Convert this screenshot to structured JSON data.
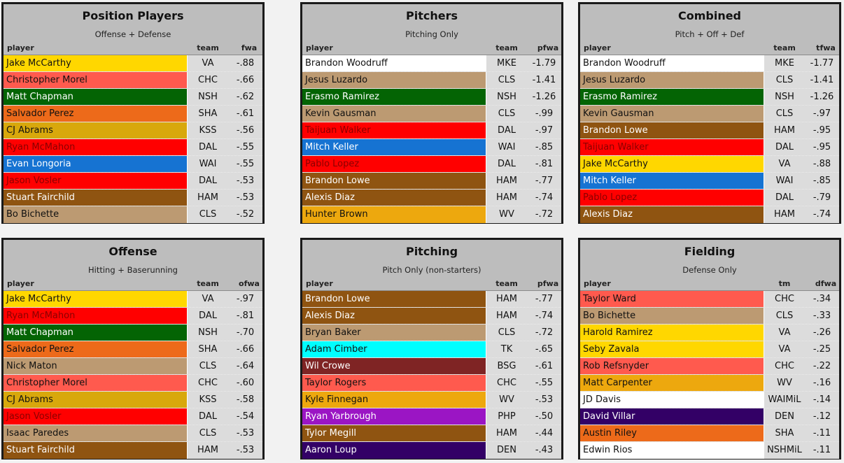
{
  "panels": [
    {
      "title": "Position Players",
      "subtitle": "Offense + Defense",
      "columns": [
        "player",
        "team",
        "fwa"
      ],
      "rows": [
        {
          "player": "Jake McCarthy",
          "team": "VA",
          "value": "-.88",
          "bg": "#ffd700",
          "fg": "#111111"
        },
        {
          "player": "Christopher Morel",
          "team": "CHC",
          "value": "-.66",
          "bg": "#ff5a4e",
          "fg": "#111111"
        },
        {
          "player": "Matt Chapman",
          "team": "NSH",
          "value": "-.62",
          "bg": "#046404",
          "fg": "#ffffff"
        },
        {
          "player": "Salvador Perez",
          "team": "SHA",
          "value": "-.61",
          "bg": "#ed6a1a",
          "fg": "#111111"
        },
        {
          "player": "CJ Abrams",
          "team": "KSS",
          "value": "-.56",
          "bg": "#d8a80c",
          "fg": "#111111"
        },
        {
          "player": "Ryan McMahon",
          "team": "DAL",
          "value": "-.55",
          "bg": "#ff0000",
          "fg": "#8a0000"
        },
        {
          "player": "Evan Longoria",
          "team": "WAI",
          "value": "-.55",
          "bg": "#1673d2",
          "fg": "#ffffff"
        },
        {
          "player": "Jason Vosler",
          "team": "DAL",
          "value": "-.53",
          "bg": "#ff0000",
          "fg": "#8a0000"
        },
        {
          "player": "Stuart Fairchild",
          "team": "HAM",
          "value": "-.53",
          "bg": "#8f5411",
          "fg": "#ffffff"
        },
        {
          "player": "Bo Bichette",
          "team": "CLS",
          "value": "-.52",
          "bg": "#bc9a72",
          "fg": "#111111"
        }
      ]
    },
    {
      "title": "Pitchers",
      "subtitle": "Pitching Only",
      "columns": [
        "player",
        "team",
        "pfwa"
      ],
      "rows": [
        {
          "player": "Brandon Woodruff",
          "team": "MKE",
          "value": "-1.79",
          "bg": "#ffffff",
          "fg": "#111111"
        },
        {
          "player": "Jesus Luzardo",
          "team": "CLS",
          "value": "-1.41",
          "bg": "#bc9a72",
          "fg": "#111111"
        },
        {
          "player": "Erasmo Ramirez",
          "team": "NSH",
          "value": "-1.26",
          "bg": "#046404",
          "fg": "#ffffff"
        },
        {
          "player": "Kevin Gausman",
          "team": "CLS",
          "value": "-.99",
          "bg": "#bc9a72",
          "fg": "#111111"
        },
        {
          "player": "Taijuan Walker",
          "team": "DAL",
          "value": "-.97",
          "bg": "#ff0000",
          "fg": "#8a0000"
        },
        {
          "player": "Mitch Keller",
          "team": "WAI",
          "value": "-.85",
          "bg": "#1673d2",
          "fg": "#ffffff"
        },
        {
          "player": "Pablo Lopez",
          "team": "DAL",
          "value": "-.81",
          "bg": "#ff0000",
          "fg": "#8a0000"
        },
        {
          "player": "Brandon Lowe",
          "team": "HAM",
          "value": "-.77",
          "bg": "#8f5411",
          "fg": "#ffffff"
        },
        {
          "player": "Alexis Diaz",
          "team": "HAM",
          "value": "-.74",
          "bg": "#8f5411",
          "fg": "#ffffff"
        },
        {
          "player": "Hunter Brown",
          "team": "WV",
          "value": "-.72",
          "bg": "#eda80e",
          "fg": "#111111"
        }
      ]
    },
    {
      "title": "Combined",
      "subtitle": "Pitch + Off + Def",
      "columns": [
        "player",
        "team",
        "tfwa"
      ],
      "rows": [
        {
          "player": "Brandon Woodruff",
          "team": "MKE",
          "value": "-1.77",
          "bg": "#ffffff",
          "fg": "#111111"
        },
        {
          "player": "Jesus Luzardo",
          "team": "CLS",
          "value": "-1.41",
          "bg": "#bc9a72",
          "fg": "#111111"
        },
        {
          "player": "Erasmo Ramirez",
          "team": "NSH",
          "value": "-1.26",
          "bg": "#046404",
          "fg": "#ffffff"
        },
        {
          "player": "Kevin Gausman",
          "team": "CLS",
          "value": "-.97",
          "bg": "#bc9a72",
          "fg": "#111111"
        },
        {
          "player": "Brandon Lowe",
          "team": "HAM",
          "value": "-.95",
          "bg": "#8f5411",
          "fg": "#ffffff"
        },
        {
          "player": "Taijuan Walker",
          "team": "DAL",
          "value": "-.95",
          "bg": "#ff0000",
          "fg": "#8a0000"
        },
        {
          "player": "Jake McCarthy",
          "team": "VA",
          "value": "-.88",
          "bg": "#ffd700",
          "fg": "#111111"
        },
        {
          "player": "Mitch Keller",
          "team": "WAI",
          "value": "-.85",
          "bg": "#1673d2",
          "fg": "#ffffff"
        },
        {
          "player": "Pablo Lopez",
          "team": "DAL",
          "value": "-.79",
          "bg": "#ff0000",
          "fg": "#8a0000"
        },
        {
          "player": "Alexis Diaz",
          "team": "HAM",
          "value": "-.74",
          "bg": "#8f5411",
          "fg": "#ffffff"
        }
      ]
    },
    {
      "title": "Offense",
      "subtitle": "Hitting + Baserunning",
      "columns": [
        "player",
        "team",
        "ofwa"
      ],
      "rows": [
        {
          "player": "Jake McCarthy",
          "team": "VA",
          "value": "-.97",
          "bg": "#ffd700",
          "fg": "#111111"
        },
        {
          "player": "Ryan McMahon",
          "team": "DAL",
          "value": "-.81",
          "bg": "#ff0000",
          "fg": "#8a0000"
        },
        {
          "player": "Matt Chapman",
          "team": "NSH",
          "value": "-.70",
          "bg": "#046404",
          "fg": "#ffffff"
        },
        {
          "player": "Salvador Perez",
          "team": "SHA",
          "value": "-.66",
          "bg": "#ed6a1a",
          "fg": "#111111"
        },
        {
          "player": "Nick Maton",
          "team": "CLS",
          "value": "-.64",
          "bg": "#bc9a72",
          "fg": "#111111"
        },
        {
          "player": "Christopher Morel",
          "team": "CHC",
          "value": "-.60",
          "bg": "#ff5a4e",
          "fg": "#111111"
        },
        {
          "player": "CJ Abrams",
          "team": "KSS",
          "value": "-.58",
          "bg": "#d8a80c",
          "fg": "#111111"
        },
        {
          "player": "Jason Vosler",
          "team": "DAL",
          "value": "-.54",
          "bg": "#ff0000",
          "fg": "#8a0000"
        },
        {
          "player": "Isaac Paredes",
          "team": "CLS",
          "value": "-.53",
          "bg": "#bc9a72",
          "fg": "#111111"
        },
        {
          "player": "Stuart Fairchild",
          "team": "HAM",
          "value": "-.53",
          "bg": "#8f5411",
          "fg": "#ffffff"
        }
      ]
    },
    {
      "title": "Pitching",
      "subtitle": "Pitch Only (non-starters)",
      "columns": [
        "player",
        "team",
        "pfwa"
      ],
      "rows": [
        {
          "player": "Brandon Lowe",
          "team": "HAM",
          "value": "-.77",
          "bg": "#8f5411",
          "fg": "#ffffff"
        },
        {
          "player": "Alexis Diaz",
          "team": "HAM",
          "value": "-.74",
          "bg": "#8f5411",
          "fg": "#ffffff"
        },
        {
          "player": "Bryan Baker",
          "team": "CLS",
          "value": "-.72",
          "bg": "#bc9a72",
          "fg": "#111111"
        },
        {
          "player": "Adam Cimber",
          "team": "TK",
          "value": "-.65",
          "bg": "#00ffff",
          "fg": "#111111"
        },
        {
          "player": "Wil Crowe",
          "team": "BSG",
          "value": "-.61",
          "bg": "#7f2424",
          "fg": "#ffffff"
        },
        {
          "player": "Taylor Rogers",
          "team": "CHC",
          "value": "-.55",
          "bg": "#ff5a4e",
          "fg": "#111111"
        },
        {
          "player": "Kyle Finnegan",
          "team": "WV",
          "value": "-.53",
          "bg": "#eda80e",
          "fg": "#111111"
        },
        {
          "player": "Ryan Yarbrough",
          "team": "PHP",
          "value": "-.50",
          "bg": "#9b15c4",
          "fg": "#ffffff"
        },
        {
          "player": "Tylor Megill",
          "team": "HAM",
          "value": "-.44",
          "bg": "#8f5411",
          "fg": "#ffffff"
        },
        {
          "player": "Aaron Loup",
          "team": "DEN",
          "value": "-.43",
          "bg": "#330066",
          "fg": "#ffffff"
        }
      ]
    },
    {
      "title": "Fielding",
      "subtitle": "Defense Only",
      "columns": [
        "player",
        "tm",
        "dfwa"
      ],
      "rows": [
        {
          "player": "Taylor Ward",
          "team": "CHC",
          "value": "-.34",
          "bg": "#ff5a4e",
          "fg": "#111111"
        },
        {
          "player": "Bo Bichette",
          "team": "CLS",
          "value": "-.33",
          "bg": "#bc9a72",
          "fg": "#111111"
        },
        {
          "player": "Harold Ramirez",
          "team": "VA",
          "value": "-.26",
          "bg": "#ffd700",
          "fg": "#111111"
        },
        {
          "player": "Seby Zavala",
          "team": "VA",
          "value": "-.25",
          "bg": "#ffd700",
          "fg": "#111111"
        },
        {
          "player": "Rob Refsnyder",
          "team": "CHC",
          "value": "-.22",
          "bg": "#ff5a4e",
          "fg": "#111111"
        },
        {
          "player": "Matt Carpenter",
          "team": "WV",
          "value": "-.16",
          "bg": "#eda80e",
          "fg": "#111111"
        },
        {
          "player": "JD Davis",
          "team": "WAIMiL",
          "value": "-.14",
          "bg": "#ffffff",
          "fg": "#111111"
        },
        {
          "player": "David Villar",
          "team": "DEN",
          "value": "-.12",
          "bg": "#330066",
          "fg": "#ffffff"
        },
        {
          "player": "Austin Riley",
          "team": "SHA",
          "value": "-.11",
          "bg": "#ed6a1a",
          "fg": "#111111"
        },
        {
          "player": "Edwin Rios",
          "team": "NSHMiL",
          "value": "-.11",
          "bg": "#ffffff",
          "fg": "#111111"
        }
      ]
    }
  ]
}
